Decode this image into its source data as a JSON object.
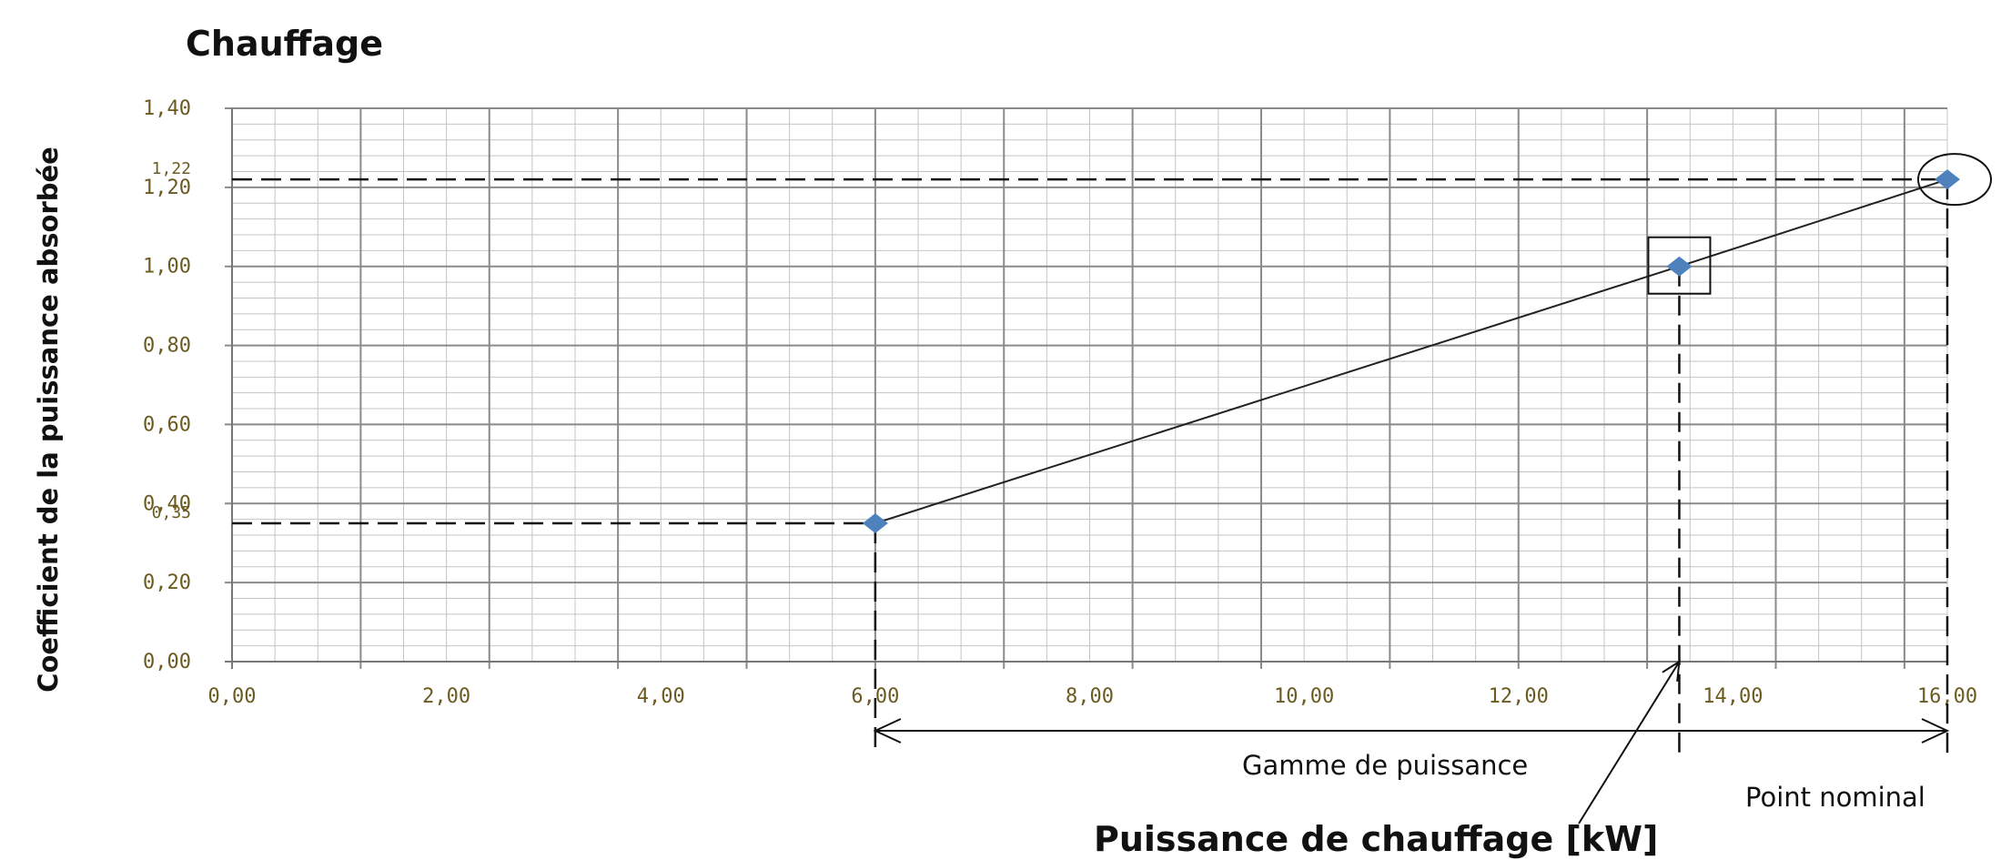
{
  "chart_data": {
    "type": "scatter",
    "title": "Chauffage",
    "xlabel": "Puissance de chauffage [kW]",
    "ylabel": "Coefficient de la puissance absorbée",
    "xlim": [
      0,
      16
    ],
    "ylim": [
      0,
      1.4
    ],
    "grid": true,
    "x_ticks": [
      "0,00",
      "2,00",
      "4,00",
      "6,00",
      "8,00",
      "10,00",
      "12,00",
      "14,00",
      "16,00"
    ],
    "y_ticks": [
      "0,00",
      "0,20",
      "0,40",
      "0,60",
      "0,80",
      "1,00",
      "1,20",
      "1,40"
    ],
    "series": [
      {
        "points": [
          {
            "x": 6.0,
            "y": 0.35
          },
          {
            "x": 13.5,
            "y": 1.0
          },
          {
            "x": 16.0,
            "y": 1.22
          }
        ],
        "color": "#4f81bd"
      }
    ],
    "reference_labels": [
      "1,22",
      "0,35"
    ],
    "annotations": {
      "range_label": "Gamme de puissance",
      "nominal_label": "Point nominal"
    }
  }
}
